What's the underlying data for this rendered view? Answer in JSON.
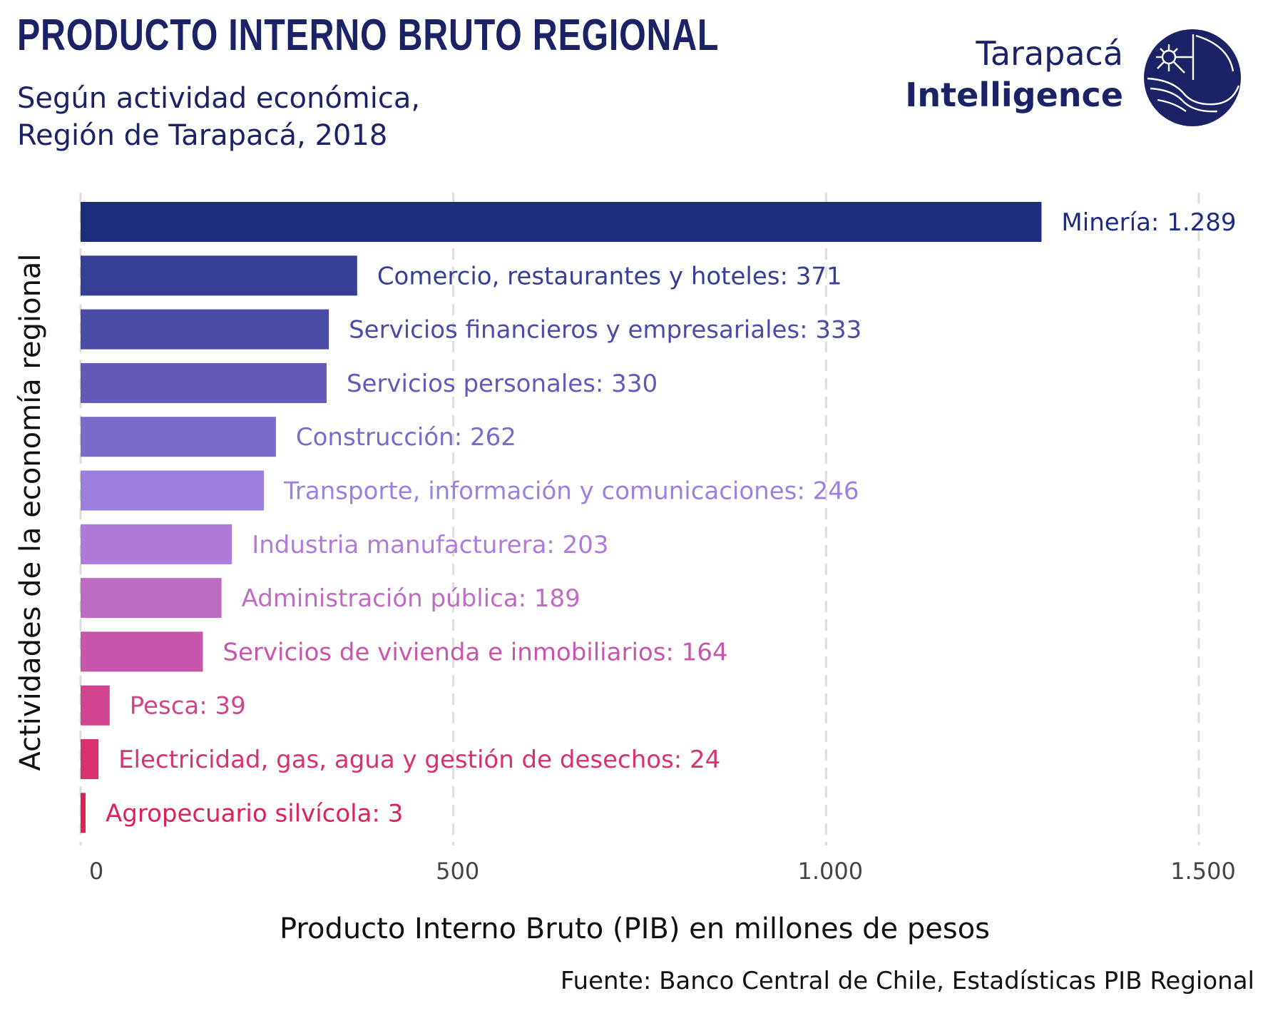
{
  "header": {
    "title": "PRODUCTO INTERNO BRUTO REGIONAL",
    "subtitle_line1": "Según actividad económica,",
    "subtitle_line2": "Región de Tarapacá, 2018"
  },
  "logo": {
    "line1": "Tarapacá",
    "line2": "Intelligence",
    "icon": "globe-sunrise-icon",
    "color": "#1b2366"
  },
  "chart_data": {
    "type": "bar",
    "orientation": "horizontal",
    "xlabel": "Producto Interno Bruto (PIB) en millones de pesos",
    "ylabel": "Actividades de la economía regional",
    "xlim": [
      0,
      1500
    ],
    "xticks": [
      0,
      500,
      1000,
      1500
    ],
    "xtick_labels": [
      "0",
      "500",
      "1.000",
      "1.500"
    ],
    "grid": "vertical dashed",
    "bars": [
      {
        "category": "Minería",
        "value": 1289,
        "label": "Minería: 1.289",
        "color": "#1e2c7e"
      },
      {
        "category": "Comercio, restaurantes y hoteles",
        "value": 371,
        "label": "Comercio, restaurantes y hoteles: 371",
        "color": "#363f95"
      },
      {
        "category": "Servicios financieros y empresariales",
        "value": 333,
        "label": "Servicios financieros y empresariales: 333",
        "color": "#4b4ba8"
      },
      {
        "category": "Servicios personales",
        "value": 330,
        "label": "Servicios personales: 330",
        "color": "#6259b8"
      },
      {
        "category": "Construcción",
        "value": 262,
        "label": "Construcción: 262",
        "color": "#7a6ac9"
      },
      {
        "category": "Transporte, información y comunicaciones",
        "value": 246,
        "label": "Transporte, información y comunicaciones: 246",
        "color": "#9b80e0"
      },
      {
        "category": "Industria manufacturera",
        "value": 203,
        "label": "Industria manufacturera: 203",
        "color": "#b07ada"
      },
      {
        "category": "Administración pública",
        "value": 189,
        "label": "Administración pública: 189",
        "color": "#bd6cc2"
      },
      {
        "category": "Servicios de vivienda e inmobiliarios",
        "value": 164,
        "label": "Servicios de vivienda e inmobiliarios: 164",
        "color": "#c655ab"
      },
      {
        "category": "Pesca",
        "value": 39,
        "label": "Pesca: 39",
        "color": "#d0448e"
      },
      {
        "category": "Electricidad, gas, agua y gestión de desechos",
        "value": 24,
        "label": "Electricidad, gas, agua y gestión de desechos: 24",
        "color": "#d83170"
      },
      {
        "category": "Agropecuario silvícola",
        "value": 3,
        "label": "Agropecuario silvícola: 3",
        "color": "#dc2356"
      }
    ]
  },
  "footer": {
    "source": "Fuente: Banco Central de Chile, Estadísticas PIB Regional"
  }
}
